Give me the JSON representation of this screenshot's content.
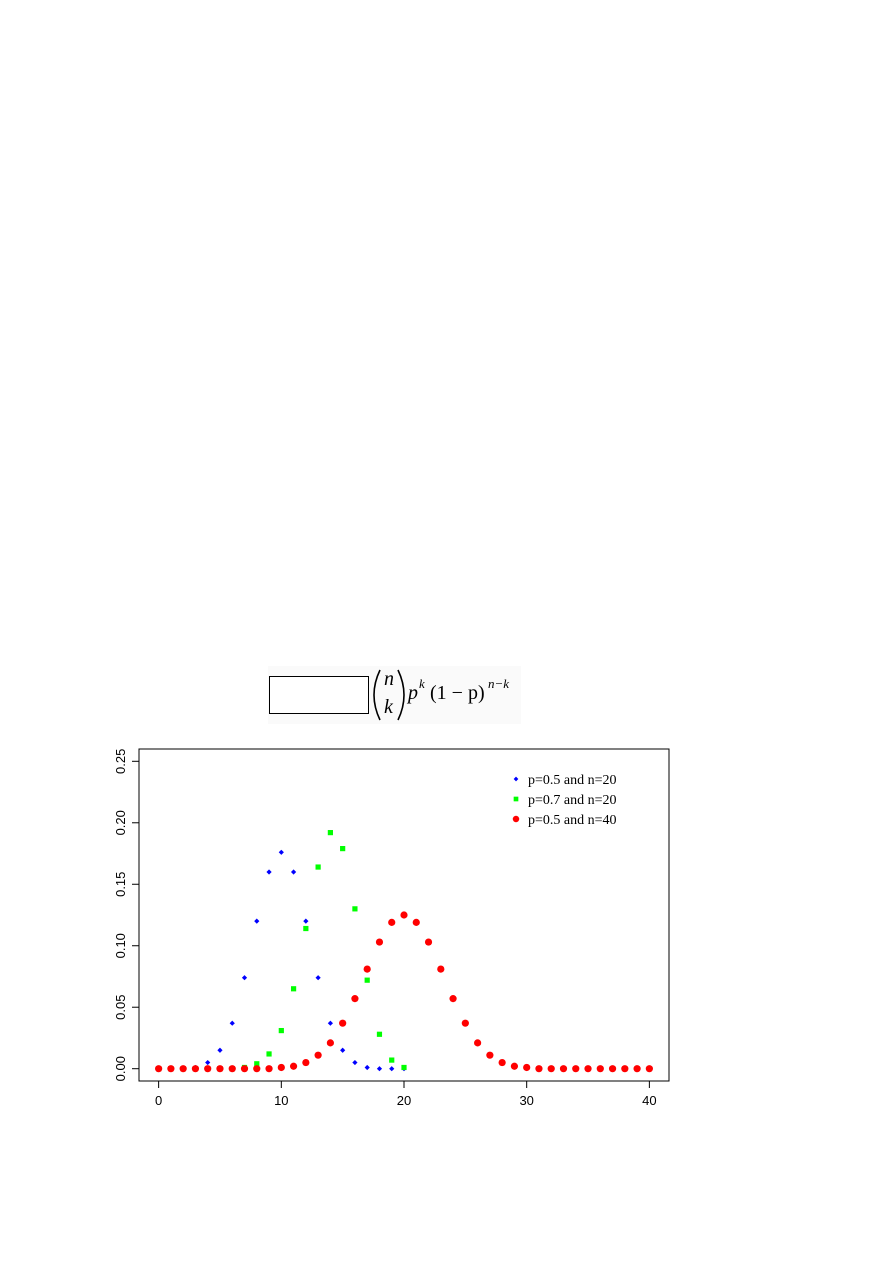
{
  "formula": {
    "binom_top": "n",
    "binom_bottom": "k",
    "base": "p",
    "exp1": "k",
    "middle": "(1 − p)",
    "exp2": "n−k"
  },
  "chart_data": {
    "type": "scatter",
    "series": [
      {
        "name": "p=0.5 and n=20",
        "color": "#0000ff",
        "marker": "diamond",
        "x": [
          0,
          1,
          2,
          3,
          4,
          5,
          6,
          7,
          8,
          9,
          10,
          11,
          12,
          13,
          14,
          15,
          16,
          17,
          18,
          19,
          20
        ],
        "values": [
          0,
          0,
          0,
          0.001,
          0.005,
          0.015,
          0.037,
          0.074,
          0.12,
          0.16,
          0.176,
          0.16,
          0.12,
          0.074,
          0.037,
          0.015,
          0.005,
          0.001,
          0,
          0,
          0
        ]
      },
      {
        "name": "p=0.7 and n=20",
        "color": "#00ff00",
        "marker": "square",
        "x": [
          0,
          1,
          2,
          3,
          4,
          5,
          6,
          7,
          8,
          9,
          10,
          11,
          12,
          13,
          14,
          15,
          16,
          17,
          18,
          19,
          20
        ],
        "values": [
          0,
          0,
          0,
          0,
          0,
          0,
          0,
          0.001,
          0.004,
          0.012,
          0.031,
          0.065,
          0.114,
          0.164,
          0.192,
          0.179,
          0.13,
          0.072,
          0.028,
          0.007,
          0.001
        ]
      },
      {
        "name": "p=0.5 and n=40",
        "color": "#ff0000",
        "marker": "circle",
        "x": [
          0,
          1,
          2,
          3,
          4,
          5,
          6,
          7,
          8,
          9,
          10,
          11,
          12,
          13,
          14,
          15,
          16,
          17,
          18,
          19,
          20,
          21,
          22,
          23,
          24,
          25,
          26,
          27,
          28,
          29,
          30,
          31,
          32,
          33,
          34,
          35,
          36,
          37,
          38,
          39,
          40
        ],
        "values": [
          0,
          0,
          0,
          0,
          0,
          0,
          0,
          0,
          0,
          0,
          0.001,
          0.002,
          0.005,
          0.011,
          0.021,
          0.037,
          0.057,
          0.081,
          0.103,
          0.119,
          0.125,
          0.119,
          0.103,
          0.081,
          0.057,
          0.037,
          0.021,
          0.011,
          0.005,
          0.002,
          0.001,
          0,
          0,
          0,
          0,
          0,
          0,
          0,
          0,
          0,
          0
        ]
      }
    ],
    "xlim": [
      -1.6,
      41.6
    ],
    "xticks": [
      0,
      10,
      20,
      30,
      40
    ],
    "ylim": [
      -0.01,
      0.26
    ],
    "yticks": [
      {
        "value": 0,
        "label": "0.00"
      },
      {
        "value": 0.05,
        "label": "0.05"
      },
      {
        "value": 0.1,
        "label": "0.10"
      },
      {
        "value": 0.15,
        "label": "0.15"
      },
      {
        "value": 0.2,
        "label": "0.20"
      },
      {
        "value": 0.25,
        "label": "0.25"
      }
    ],
    "legend": "top-right"
  }
}
